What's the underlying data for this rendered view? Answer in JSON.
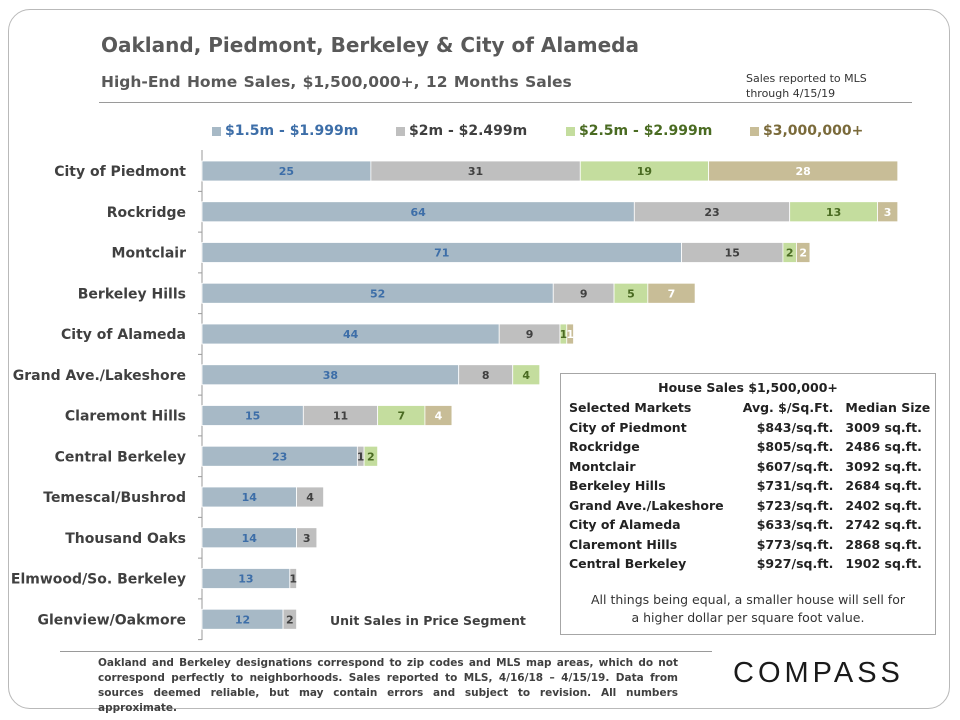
{
  "header": {
    "title": "Oakland, Piedmont, Berkeley & City of Alameda",
    "subtitle": "High-End  Home Sales, $1,500,000+, 12 Months  Sales",
    "note_line1": "Sales reported to MLS",
    "note_line2": "through 4/15/19"
  },
  "colors": {
    "seg1": "#a7b9c6",
    "seg2": "#bfbfbf",
    "seg3": "#c4dd9e",
    "seg4": "#c8bd97",
    "label1": "#3d6ea8",
    "label2": "#404040",
    "label3": "#4a6b22",
    "label4": "#ffffff"
  },
  "chart_data": {
    "type": "bar",
    "orientation": "horizontal",
    "stacked": true,
    "xlabel": "Unit Sales in Price Segment",
    "categories": [
      "City of Piedmont",
      "Rockridge",
      "Montclair",
      "Berkeley Hills",
      "City of Alameda",
      "Grand Ave./Lakeshore",
      "Claremont Hills",
      "Central Berkeley",
      "Temescal/Bushrod",
      "Thousand Oaks",
      "Elmwood/So. Berkeley",
      "Glenview/Oakmore"
    ],
    "series": [
      {
        "name": "$1.5m - $1.999m",
        "values": [
          25,
          64,
          71,
          52,
          44,
          38,
          15,
          23,
          14,
          14,
          13,
          12
        ]
      },
      {
        "name": "$2m - $2.499m",
        "values": [
          31,
          23,
          15,
          9,
          9,
          8,
          11,
          1,
          4,
          3,
          1,
          2
        ]
      },
      {
        "name": "$2.5m - $2.999m",
        "values": [
          19,
          13,
          2,
          5,
          1,
          4,
          7,
          2,
          0,
          0,
          0,
          0
        ]
      },
      {
        "name": "$3,000,000+",
        "values": [
          28,
          3,
          2,
          7,
          1,
          0,
          4,
          0,
          0,
          0,
          0,
          0
        ]
      }
    ],
    "legend_position": "top",
    "grid": false
  },
  "table": {
    "title": "House Sales $1,500,000+",
    "columns": [
      "Selected Markets",
      "Avg. $/Sq.Ft.",
      "Median Size"
    ],
    "rows": [
      [
        "City of Piedmont",
        "$843/sq.ft.",
        "3009 sq.ft."
      ],
      [
        "Rockridge",
        "$805/sq.ft.",
        "2486 sq.ft."
      ],
      [
        "Montclair",
        "$607/sq.ft.",
        "3092 sq.ft."
      ],
      [
        "Berkeley Hills",
        "$731/sq.ft.",
        "2684 sq.ft."
      ],
      [
        "Grand Ave./Lakeshore",
        "$723/sq.ft.",
        "2402 sq.ft."
      ],
      [
        "City of Alameda",
        "$633/sq.ft.",
        "2742 sq.ft."
      ],
      [
        "Claremont Hills",
        "$773/sq.ft.",
        "2868 sq.ft."
      ],
      [
        "Central Berkeley",
        "$927/sq.ft.",
        "1902 sq.ft."
      ]
    ],
    "note_line1": "All things being equal, a smaller house will sell for",
    "note_line2": "a higher dollar per square foot value."
  },
  "footnote": "Oakland and Berkeley designations correspond to zip codes and MLS map areas, which do not correspond perfectly to neighborhoods. Sales reported to MLS, 4/16/18 – 4/15/19. Data from  sources deemed reliable, but may contain errors and subject to revision.  All numbers approximate.",
  "logo": "COMPASS"
}
